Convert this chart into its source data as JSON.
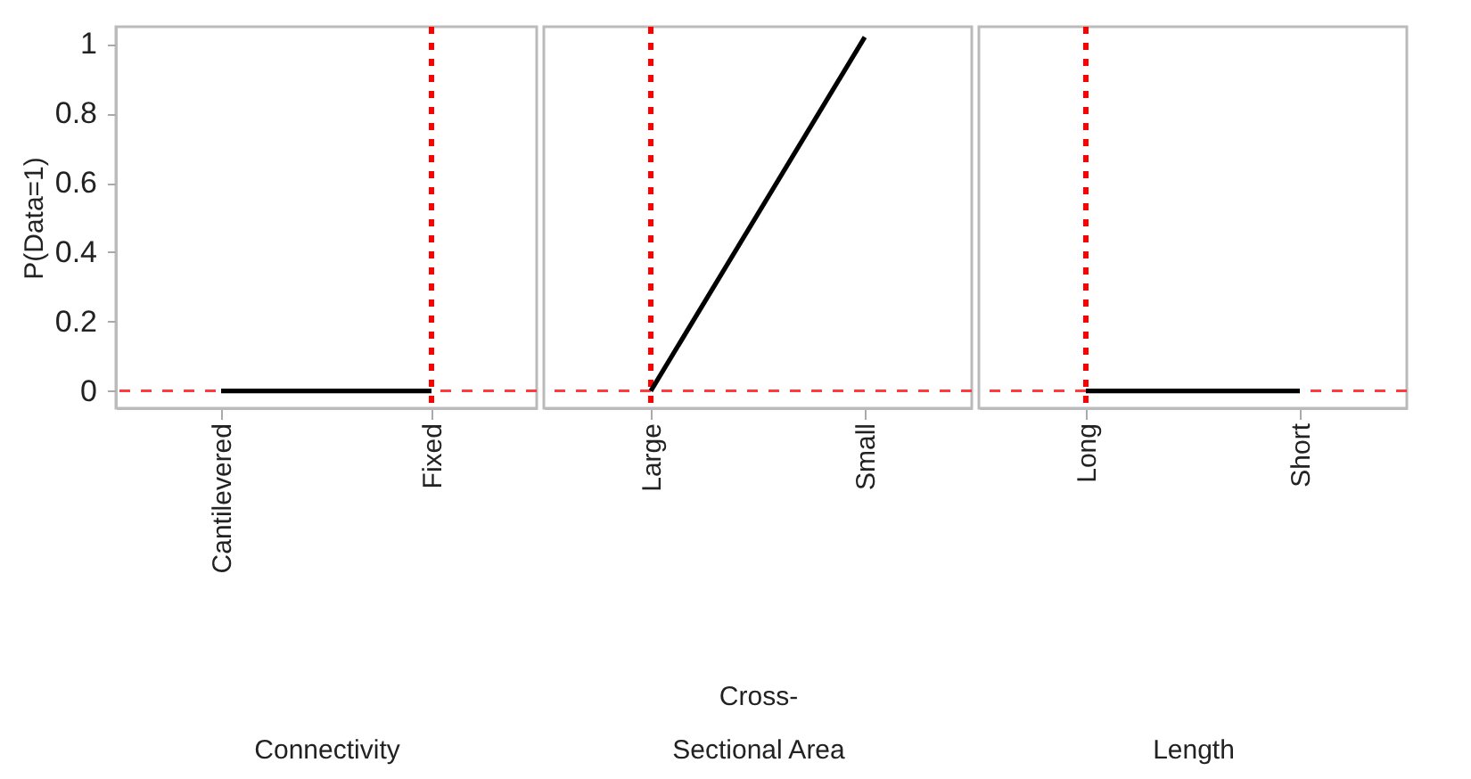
{
  "chart_data": [
    {
      "type": "line",
      "categories": [
        "Cantilevered",
        "Fixed"
      ],
      "series": [
        {
          "color": "#000000",
          "values": [
            0,
            0
          ]
        }
      ],
      "xlabel": "Connectivity",
      "ylabel": "P(Data=1)",
      "ylim": [
        -0.05,
        1.05
      ],
      "yticks": [
        0,
        0.2,
        0.4,
        0.6,
        0.8,
        1
      ],
      "ref_lines": [
        {
          "axis": "y",
          "value": 0,
          "color": "#ff3b3b",
          "line_style": "dashed"
        },
        {
          "axis": "x",
          "value": "Fixed",
          "color": "#ff0000",
          "line_style": "dotted"
        }
      ]
    },
    {
      "type": "line",
      "categories": [
        "Large",
        "Small"
      ],
      "series": [
        {
          "color": "#000000",
          "values": [
            0,
            1.02
          ]
        }
      ],
      "xlabel": "Cross-Sectional Area",
      "ylim": [
        -0.05,
        1.05
      ],
      "yticks": [
        0,
        0.2,
        0.4,
        0.6,
        0.8,
        1
      ],
      "tick_labels": "x",
      "ref_lines": [
        {
          "axis": "y",
          "value": 0,
          "color": "#ff3b3b",
          "line_style": "dashed"
        },
        {
          "axis": "x",
          "value": "Large",
          "color": "#ff0000",
          "line_style": "dotted"
        }
      ]
    },
    {
      "type": "line",
      "categories": [
        "Long",
        "Short"
      ],
      "series": [
        {
          "color": "#000000",
          "values": [
            0,
            0
          ]
        }
      ],
      "xlabel": "Length",
      "ylim": [
        -0.05,
        1.05
      ],
      "yticks": [
        0,
        0.2,
        0.4,
        0.6,
        0.8,
        1
      ],
      "tick_labels": "x",
      "ref_lines": [
        {
          "axis": "y",
          "value": 0,
          "color": "#ff3b3b",
          "line_style": "dashed"
        },
        {
          "axis": "x",
          "value": "Long",
          "color": "#ff0000",
          "line_style": "dotted"
        }
      ]
    }
  ]
}
